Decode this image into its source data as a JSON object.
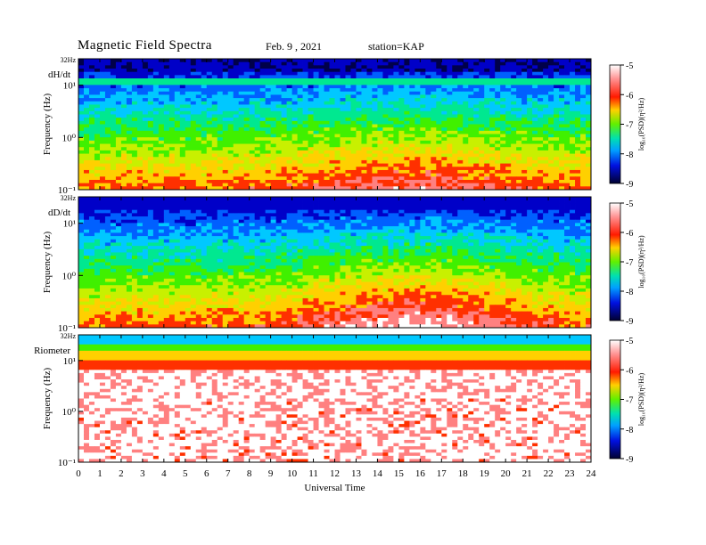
{
  "header": {
    "title": "Magnetic  Field  Spectra",
    "date": "Feb. 9  , 2021",
    "station": "station=KAP"
  },
  "chart_data": [
    {
      "type": "heatmap",
      "panel_label": "dH/dt",
      "ylabel": "Frequency  (Hz)",
      "ytick_labels": [
        "10⁻¹",
        "10⁰",
        "10¹",
        "32Hz"
      ],
      "x": [
        0,
        1,
        2,
        3,
        4,
        5,
        6,
        7,
        8,
        9,
        10,
        11,
        12,
        13,
        14,
        15,
        16,
        17,
        18,
        19,
        20,
        21,
        22,
        23,
        24
      ],
      "xlabel": "",
      "colorbar": {
        "label": "log₁₀(PSD)(η²/Hz)",
        "ticks": [
          -5,
          -6,
          -7,
          -8,
          -9
        ],
        "range": [
          -9,
          -5
        ]
      },
      "ylim_hz": [
        0.1,
        32
      ]
    },
    {
      "type": "heatmap",
      "panel_label": "dD/dt",
      "ylabel": "Frequency  (Hz)",
      "ytick_labels": [
        "10⁻¹",
        "10⁰",
        "10¹",
        "32Hz"
      ],
      "x": [
        0,
        1,
        2,
        3,
        4,
        5,
        6,
        7,
        8,
        9,
        10,
        11,
        12,
        13,
        14,
        15,
        16,
        17,
        18,
        19,
        20,
        21,
        22,
        23,
        24
      ],
      "xlabel": "",
      "colorbar": {
        "label": "log₁₀(PSD)(η²/Hz)",
        "ticks": [
          -5,
          -6,
          -7,
          -8,
          -9
        ],
        "range": [
          -9,
          -5
        ]
      },
      "ylim_hz": [
        0.1,
        32
      ]
    },
    {
      "type": "heatmap",
      "panel_label": "Riometer",
      "ylabel": "Frequency  (Hz)",
      "ytick_labels": [
        "10⁻¹",
        "10⁰",
        "10¹",
        "32Hz"
      ],
      "x": [
        0,
        1,
        2,
        3,
        4,
        5,
        6,
        7,
        8,
        9,
        10,
        11,
        12,
        13,
        14,
        15,
        16,
        17,
        18,
        19,
        20,
        21,
        22,
        23,
        24
      ],
      "xlabel": "Universal  Time",
      "colorbar": {
        "label": "log₁₀(PSD)(η²/Hz)",
        "ticks": [
          -5,
          -6,
          -7,
          -8,
          -9
        ],
        "range": [
          -9,
          -5
        ]
      },
      "ylim_hz": [
        0.1,
        32
      ]
    }
  ],
  "colors": {
    "colormap": [
      "#00004a",
      "#0000c8",
      "#0060ff",
      "#00c8ff",
      "#00e890",
      "#40f000",
      "#c8f000",
      "#ffd000",
      "#ff3000",
      "#ff8080",
      "#ffffff"
    ]
  }
}
